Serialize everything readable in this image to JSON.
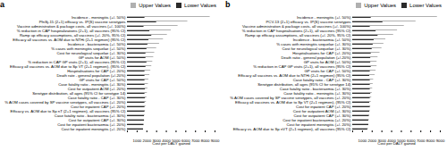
{
  "chart_data": [
    {
      "type": "bar",
      "orientation": "horizontal",
      "title": "a",
      "xlabel": "Cost per DALY gained",
      "categories": [
        "Incidence - meningitis (+/- 50%)",
        "PfnSj-15 (2+1) efficacy vs. IP(S) vaccine serotypes",
        "Vaccine administration & package costs, all vaccines (+/- 100%)",
        "% reduction in CAP hospitalizations (2+1), all vaccines (95% CI)",
        "Ramp up efficacy assumptions, all vaccines (+/- 20%, 95% CI)",
        "Efficacy all vaccines vs. AOM due to NTHi (2+1 regimen) (95% CI)",
        "Incidence - bacteraemia (+/- 50%)",
        "% cases with meningitis sequelae (+/- 50%)",
        "Cost for neurological sequelae (+/- 30%)",
        "GP visits for AOM (+/- 50%)",
        "% reduction in CAP GP visits (2+1), all vaccines (95% CI)",
        "Efficacy all vaccines vs. AOM due to Sp VT (2+1 regimen), (95% CI)",
        "Hospitalisations for CAP (+/- 20%)",
        "Death rate - general population (+/-20%)",
        "GP visits for CAP (+/- 50%)",
        "Case fatality ratio - meningitis (+/- 30%)",
        "Cost for outpatient AOM (+/- 20%)",
        "Serotype distribution, all ages (95% CI for serotype 14)",
        "Case fatality ratio - CAP (+/- 30%)",
        "% AOM cases covered by SP vaccine serotypes, all vaccines (+/- 20%)",
        "Cost for inpatient CAP (+/- 20%)",
        "Efficacy vs. AOM due to Sp nT (2+1 regimen), all vaccines (95% CI)",
        "Case fatality ratio - bacteraemia (+/- 30%)",
        "Cost for outpatient CAP (+/- 30%)",
        "Cost for inpatient bacteraemia (+/- 20%)",
        "Cost for inpatient meningitis (+/- 20%)"
      ],
      "series": [
        {
          "name": "Upper Values",
          "color": "#b0b0b0",
          "values": [
            8500,
            6200,
            5200,
            4500,
            4100,
            3700,
            3300,
            3000,
            2800,
            2700,
            2600,
            2500,
            2400,
            2300,
            2200,
            2150,
            2100,
            2050,
            2000,
            1950,
            1900,
            1850,
            1800,
            1750,
            1700,
            1650
          ]
        },
        {
          "name": "Lower Values",
          "color": "#2a2a2a",
          "values": [
            1800,
            3000,
            1700,
            2300,
            2500,
            2200,
            2100,
            2000,
            1900,
            1900,
            2000,
            1900,
            1800,
            1800,
            1800,
            1800,
            1850,
            1800,
            1850,
            1800,
            1800,
            1800,
            1750,
            1750,
            1700,
            1650
          ]
        }
      ],
      "xlim": [
        0,
        9000
      ],
      "xticks": [
        {
          "value": 0,
          "label": ""
        },
        1000,
        2000,
        3000,
        4000,
        5000,
        6000,
        7000,
        8000,
        9000
      ],
      "legend": "upper right"
    },
    {
      "type": "bar",
      "orientation": "horizontal",
      "title": "b",
      "xlabel": "Cost per DALY gained",
      "categories": [
        "Incidence - meningitis (+/- 50%)",
        "PCV-13 (2+1) efficacy vs. IP(S) vaccine serotypes",
        "Vaccine administration & package costs, all vaccines (+/- 100%)",
        "% reduction in CAP hospitalisations (2+1), all vaccines (95% CI)",
        "Ramp up efficacy assumptions, all vaccines (+/- 20%, 95% CI)",
        "Incidence - bacteraemia (+/- 50%)",
        "% cases with meningitis sequelae (+/- 30%)",
        "Cost for neurological sequelae (+/- 30%)",
        "Hospitalisations for CAP (+/- 20%)",
        "Death ratio - general population (+/-20%)",
        "GP visits for AOM (+/- 50%)",
        "% reduction in CAP GP visits (2+1), all vaccines (95% CI)",
        "GP visits for CAP (+/- 50%)",
        "Efficacy all vaccines vs. AOM due to NTHi (2+1 regimen) (95% CI)",
        "Case fatality ratio - CAP (+/- 30%)",
        "Serotype distribution, all ages (95% CI for serotype 14)",
        "Case fatality ratio - bacteraemia (+/- 30%)",
        "Case fatality ratio - meningitis (+/- 30%)",
        "% AOM cases covered by SP vaccine serotypes, all vaccines (+/- 20%)",
        "Efficacy all vaccines vs. AOM due to Sp VT (2+1 regimen), (95% CI)",
        "Cost for inpatient CAP (+/- 20%)",
        "Cost for outpatient AOM (+/- 30%)",
        "Cost for outpatient CAP (+/- 30%)",
        "Cost for inpatient bacteraemia (+/- 20%)",
        "Cost for inpatient meningitis (+/- 20%)",
        "Efficacy vs. AOM due to Sp nVT (2+1 regimen), all vaccines (95% CI)"
      ],
      "series": [
        {
          "name": "Upper Values",
          "color": "#b0b0b0",
          "values": [
            8700,
            6500,
            5300,
            4600,
            4200,
            3400,
            3200,
            3000,
            2800,
            2600,
            2500,
            2500,
            2400,
            2300,
            2150,
            2100,
            2050,
            2000,
            1950,
            1900,
            1850,
            1800,
            1750,
            1700,
            1650,
            1600
          ]
        },
        {
          "name": "Lower Values",
          "color": "#2a2a2a",
          "values": [
            1900,
            3100,
            1800,
            2400,
            2600,
            2200,
            2100,
            2000,
            1900,
            1850,
            1850,
            1900,
            1800,
            1750,
            1800,
            1800,
            1800,
            1850,
            1800,
            1750,
            1800,
            1750,
            1700,
            1650,
            1650,
            1550
          ]
        }
      ],
      "xlim": [
        0,
        9000
      ],
      "xticks": [
        {
          "value": 0,
          "label": ""
        },
        1000,
        2000,
        3000,
        4000,
        5000,
        6000,
        7000,
        8000,
        9000
      ],
      "legend": "upper right"
    }
  ]
}
